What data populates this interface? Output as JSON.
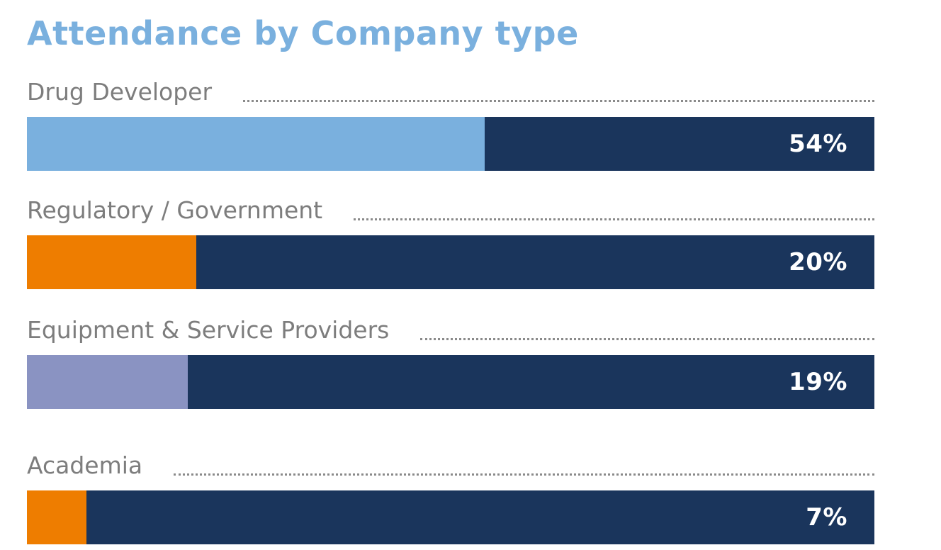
{
  "chart_data": {
    "type": "bar",
    "title": "Attendance by Company type",
    "categories": [
      "Drug Developer",
      "Regulatory / Government",
      "Equipment & Service Providers",
      "Academia"
    ],
    "values": [
      54,
      20,
      19,
      7
    ],
    "value_labels": [
      "54%",
      "20%",
      "19%",
      "7%"
    ],
    "unit": "%",
    "xlim": [
      0,
      100
    ],
    "bar_colors": [
      "#7ab0de",
      "#ee7d00",
      "#8a93c2",
      "#ee7d00"
    ],
    "track_color": "#1a355c",
    "title_color": "#7ab0de",
    "orientation": "horizontal"
  }
}
